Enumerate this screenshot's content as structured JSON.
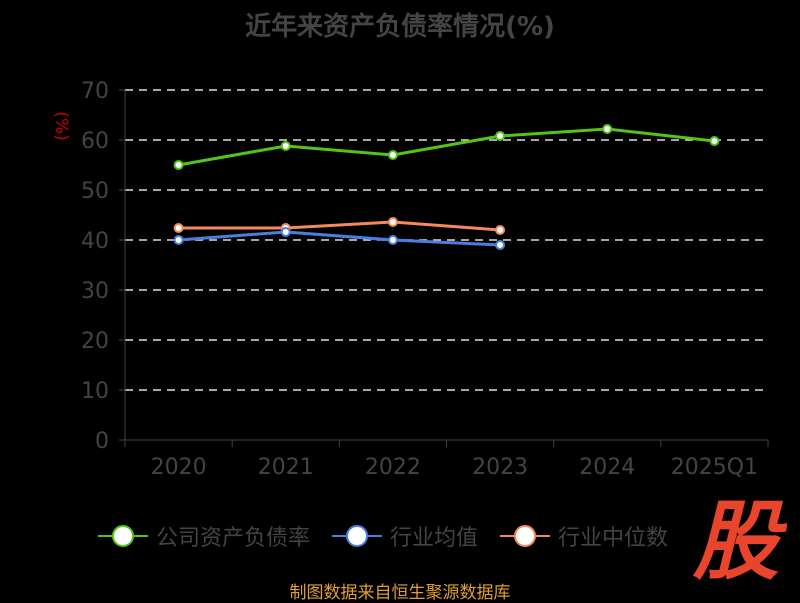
{
  "chart_data": {
    "type": "line",
    "title": "近年来资产负债率情况(%)",
    "ylabel": "(%)",
    "xlabel": "",
    "categories": [
      "2020",
      "2021",
      "2022",
      "2023",
      "2024",
      "2025Q1"
    ],
    "ylim": [
      0,
      70
    ],
    "yticks": [
      "0",
      "10",
      "20",
      "30",
      "40",
      "50",
      "60",
      "70"
    ],
    "grid": true,
    "legend_position": "bottom",
    "series": [
      {
        "name": "公司资产负债率",
        "color": "#52c41a",
        "values": [
          55.0,
          58.8,
          57.0,
          60.8,
          62.2,
          59.8
        ]
      },
      {
        "name": "行业均值",
        "color": "#4a7fe0",
        "values": [
          40.0,
          41.6,
          40.0,
          39.0,
          null,
          null
        ]
      },
      {
        "name": "行业中位数",
        "color": "#f5895a",
        "values": [
          42.4,
          42.4,
          43.6,
          42.0,
          null,
          null
        ]
      }
    ]
  },
  "source": "制图数据来自恒生聚源数据库",
  "logo_text": "股"
}
